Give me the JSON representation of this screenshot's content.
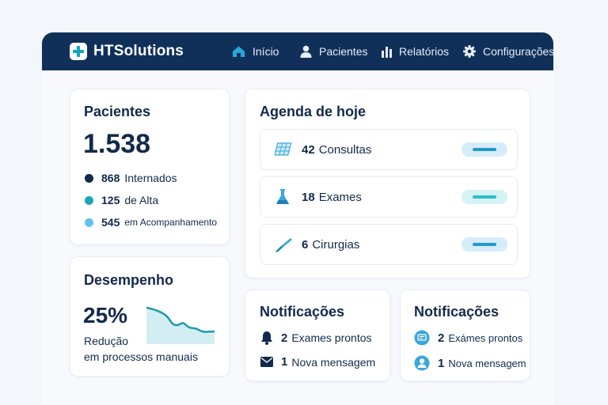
{
  "app": {
    "name": "HTSolutions"
  },
  "nav": [
    {
      "label": "Início",
      "icon": "home-icon"
    },
    {
      "label": "Pacientes",
      "icon": "user-icon"
    },
    {
      "label": "Relatórios",
      "icon": "bar-chart-icon"
    },
    {
      "label": "Configurações",
      "icon": "gear-icon"
    }
  ],
  "pacientes": {
    "title": "Pacientes",
    "total": "1.538",
    "stats": [
      {
        "value": "868",
        "label": "Internados",
        "color": "#13294b"
      },
      {
        "value": "125",
        "label": "de Alta",
        "color": "#1aa6b7"
      },
      {
        "value": "545",
        "label": "em Acompanhamento",
        "color": "#5cc4ee"
      }
    ]
  },
  "agenda": {
    "title": "Agenda de hoje",
    "items": [
      {
        "value": "42",
        "label": "Consultas",
        "icon": "calendar-grid-icon"
      },
      {
        "value": "18",
        "label": "Exames",
        "icon": "flask-icon"
      },
      {
        "value": "6",
        "label": "Cirurgias",
        "icon": "scalpel-icon"
      }
    ]
  },
  "desempenho": {
    "title": "Desempenho",
    "percent": "25%",
    "line1": "Redução",
    "line2": "em processos manuais"
  },
  "notif1": {
    "title": "Notificações",
    "items": [
      {
        "value": "2",
        "label": "Exames prontos",
        "icon": "bell-icon"
      },
      {
        "value": "1",
        "label": "Nova mensagem",
        "icon": "envelope-icon"
      }
    ]
  },
  "notif2": {
    "title": "Notificações",
    "items": [
      {
        "value": "2",
        "label": "Exámes prontos",
        "icon": "chat-icon"
      },
      {
        "value": "1",
        "label": "Nova mensagem",
        "icon": "user-circle-icon"
      }
    ]
  }
}
